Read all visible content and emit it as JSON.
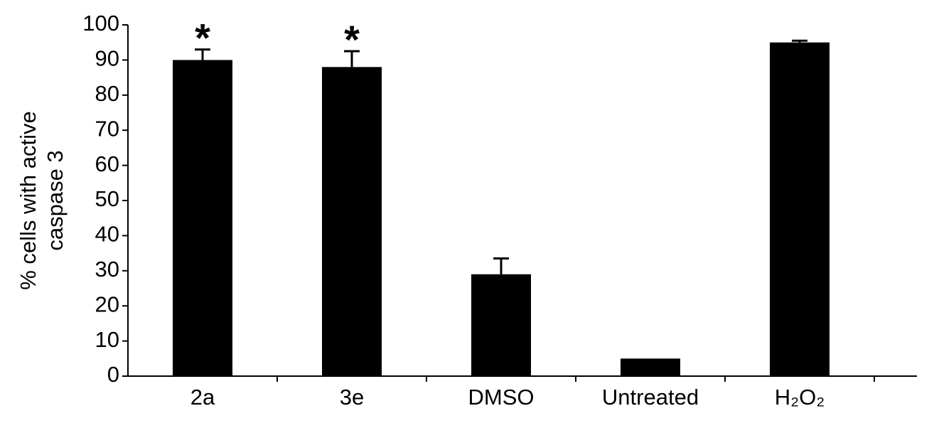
{
  "chart_data": {
    "type": "bar",
    "ylabel": [
      "% cells with active",
      "caspase 3"
    ],
    "categories": [
      "2a",
      "3e",
      "DMSO",
      "Untreated",
      "H₂O₂"
    ],
    "values": [
      90,
      88,
      29,
      5,
      95
    ],
    "errors": [
      3,
      4.5,
      4.5,
      0,
      0.5
    ],
    "color": "#000000",
    "ylim": [
      0,
      100
    ],
    "yticks": [
      0,
      10,
      20,
      30,
      40,
      50,
      60,
      70,
      80,
      90,
      100
    ],
    "grid": false,
    "annotations": [
      {
        "text": "*",
        "category": "2a"
      },
      {
        "text": "*",
        "category": "3e"
      }
    ]
  }
}
